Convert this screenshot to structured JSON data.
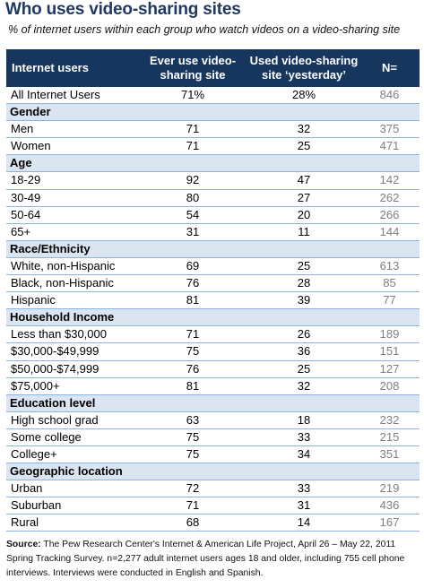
{
  "title": "Who uses video-sharing sites",
  "subtitle": "% of internet users within each group who watch videos on a video-sharing site",
  "chart_data": {
    "type": "table",
    "columns": [
      "Internet users",
      "Ever use video-sharing site",
      "Used video-sharing site ‘yesterday’",
      "N="
    ],
    "rows": [
      {
        "kind": "row",
        "label": "All Internet Users",
        "ever": "71%",
        "yesterday": "28%",
        "n": "846"
      },
      {
        "kind": "group",
        "label": "Gender"
      },
      {
        "kind": "row",
        "label": "Men",
        "ever": "71",
        "yesterday": "32",
        "n": "375"
      },
      {
        "kind": "row",
        "label": "Women",
        "ever": "71",
        "yesterday": "25",
        "n": "471"
      },
      {
        "kind": "group",
        "label": "Age"
      },
      {
        "kind": "row",
        "label": "18-29",
        "ever": "92",
        "yesterday": "47",
        "n": "142"
      },
      {
        "kind": "row",
        "label": "30-49",
        "ever": "80",
        "yesterday": "27",
        "n": "262"
      },
      {
        "kind": "row",
        "label": "50-64",
        "ever": "54",
        "yesterday": "20",
        "n": "266"
      },
      {
        "kind": "row",
        "label": "65+",
        "ever": "31",
        "yesterday": "11",
        "n": "144"
      },
      {
        "kind": "group",
        "label": "Race/Ethnicity"
      },
      {
        "kind": "row",
        "label": "White, non-Hispanic",
        "ever": "69",
        "yesterday": "25",
        "n": "613"
      },
      {
        "kind": "row",
        "label": "Black, non-Hispanic",
        "ever": "76",
        "yesterday": "28",
        "n": "85"
      },
      {
        "kind": "row",
        "label": "Hispanic",
        "ever": "81",
        "yesterday": "39",
        "n": "77"
      },
      {
        "kind": "group",
        "label": "Household Income"
      },
      {
        "kind": "row",
        "label": "Less than $30,000",
        "ever": "71",
        "yesterday": "26",
        "n": "189"
      },
      {
        "kind": "row",
        "label": "$30,000-$49,999",
        "ever": "75",
        "yesterday": "36",
        "n": "151"
      },
      {
        "kind": "row",
        "label": "$50,000-$74,999",
        "ever": "76",
        "yesterday": "25",
        "n": "127"
      },
      {
        "kind": "row",
        "label": "$75,000+",
        "ever": "81",
        "yesterday": "32",
        "n": "208"
      },
      {
        "kind": "group",
        "label": "Education level"
      },
      {
        "kind": "row",
        "label": "High school grad",
        "ever": "63",
        "yesterday": "18",
        "n": "232"
      },
      {
        "kind": "row",
        "label": "Some college",
        "ever": "75",
        "yesterday": "33",
        "n": "215"
      },
      {
        "kind": "row",
        "label": "College+",
        "ever": "75",
        "yesterday": "34",
        "n": "351"
      },
      {
        "kind": "group",
        "label": "Geographic location"
      },
      {
        "kind": "row",
        "label": "Urban",
        "ever": "72",
        "yesterday": "33",
        "n": "219"
      },
      {
        "kind": "row",
        "label": "Suburban",
        "ever": "71",
        "yesterday": "31",
        "n": "436"
      },
      {
        "kind": "row",
        "label": "Rural",
        "ever": "68",
        "yesterday": "14",
        "n": "167"
      }
    ]
  },
  "footer": {
    "source_label": "Source:",
    "source_text": " The Pew Research Center's Internet & American Life Project, April 26 – May 22, 2011 Spring Tracking Survey. n=2,277 adult internet users ages 18 and older, including 755 cell phone interviews. Interviews were conducted in English and Spanish."
  },
  "colors": {
    "title": "#1f3864",
    "header_bg": "#17365d",
    "group_bg": "#dbe5f1",
    "row_border": "#8db3e2",
    "n_text": "#7f7f7f"
  }
}
